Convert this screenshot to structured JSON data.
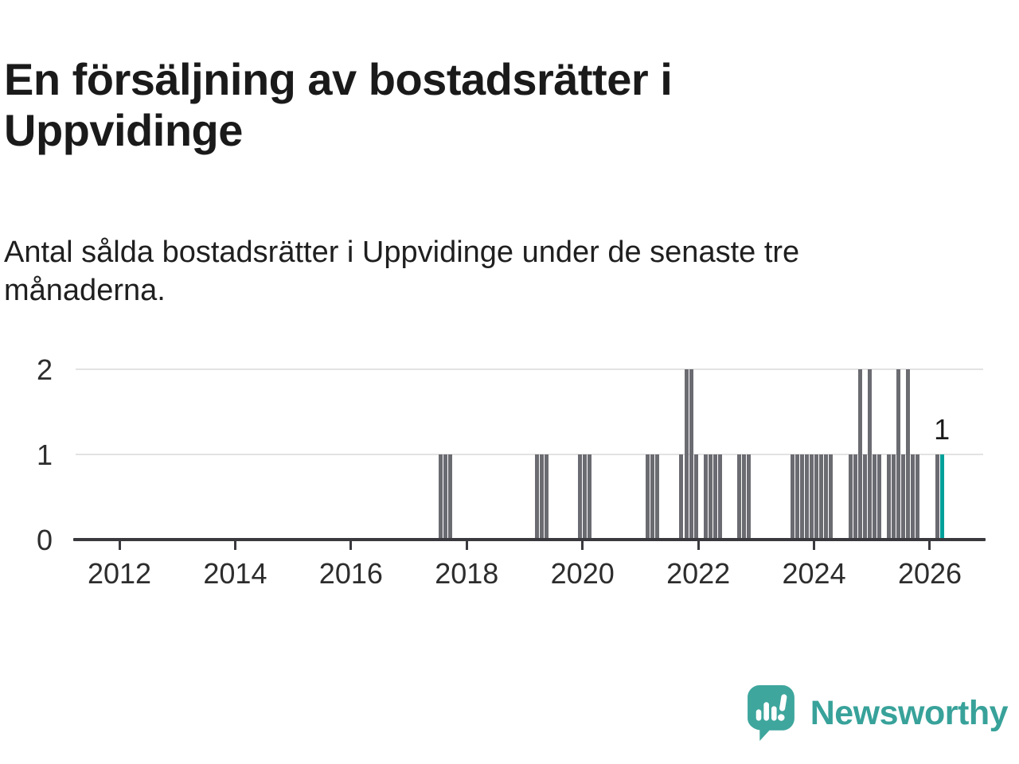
{
  "header": {
    "title": "En försäljning av bostadsrätter i Uppvidinge",
    "subtitle": "Antal sålda bostadsrätter i Uppvidinge under de senaste tre månaderna."
  },
  "chart_data": {
    "type": "bar",
    "title": "En försäljning av bostadsrätter i Uppvidinge",
    "xlabel": "",
    "ylabel": "",
    "ylim": [
      0,
      2
    ],
    "yticks": [
      0,
      1,
      2
    ],
    "xticks": [
      2012,
      2014,
      2016,
      2018,
      2020,
      2022,
      2024,
      2026
    ],
    "grid": "horizontal",
    "legend": "none",
    "start_month": "2011-04",
    "bar_color": "#6b6b72",
    "highlight_color": "#00a09a",
    "highlight_month_index": 179,
    "annotation": {
      "text": "1",
      "month_index": 179
    },
    "monthly_values": [
      0,
      0,
      0,
      0,
      0,
      0,
      0,
      0,
      0,
      0,
      0,
      0,
      0,
      0,
      0,
      0,
      0,
      0,
      0,
      0,
      0,
      0,
      0,
      0,
      0,
      0,
      0,
      0,
      0,
      0,
      0,
      0,
      0,
      0,
      0,
      0,
      0,
      0,
      0,
      0,
      0,
      0,
      0,
      0,
      0,
      0,
      0,
      0,
      0,
      0,
      0,
      0,
      0,
      0,
      0,
      0,
      0,
      0,
      0,
      0,
      0,
      0,
      0,
      0,
      0,
      0,
      0,
      0,
      0,
      0,
      0,
      0,
      0,
      0,
      0,
      1,
      1,
      1,
      0,
      0,
      0,
      0,
      0,
      0,
      0,
      0,
      0,
      0,
      0,
      0,
      0,
      0,
      0,
      0,
      0,
      1,
      1,
      1,
      0,
      0,
      0,
      0,
      0,
      0,
      1,
      1,
      1,
      0,
      0,
      0,
      0,
      0,
      0,
      0,
      0,
      0,
      0,
      0,
      1,
      1,
      1,
      0,
      0,
      0,
      0,
      1,
      2,
      2,
      1,
      0,
      1,
      1,
      1,
      1,
      0,
      0,
      0,
      1,
      1,
      1,
      0,
      0,
      0,
      0,
      0,
      0,
      0,
      0,
      1,
      1,
      1,
      1,
      1,
      1,
      1,
      1,
      1,
      0,
      0,
      0,
      1,
      1,
      2,
      1,
      2,
      1,
      1,
      0,
      1,
      1,
      2,
      1,
      2,
      1,
      1,
      0,
      0,
      0,
      1,
      1
    ]
  },
  "footer": {
    "brand": "Newsworthy"
  }
}
